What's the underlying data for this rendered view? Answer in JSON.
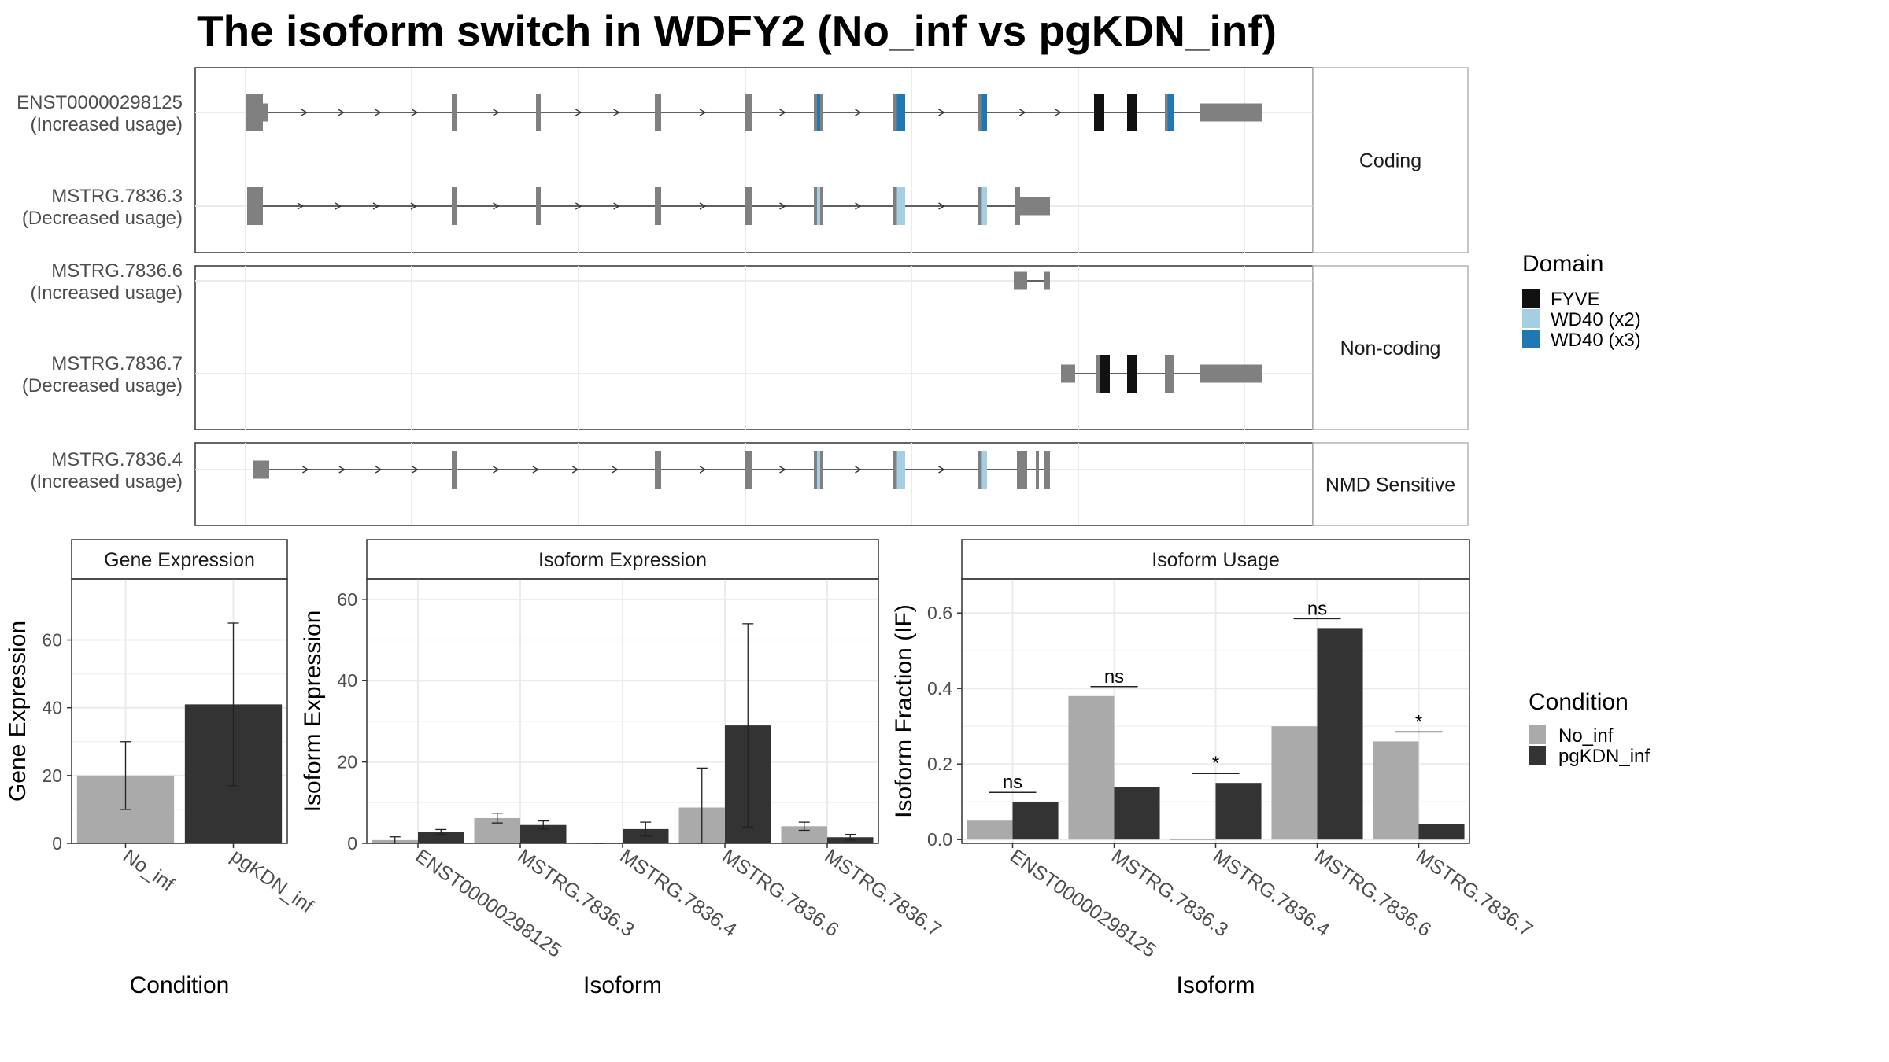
{
  "title": "The isoform switch in WDFY2 (No_inf vs pgKDN_inf)",
  "colors": {
    "exon": "#808080",
    "FYVE": "#111111",
    "WD40 (x2)": "#a6cee3",
    "WD40 (x3)": "#1f78b4",
    "No_inf": "#aaaaaa",
    "pgKDN_inf": "#333333"
  },
  "structure": {
    "facets": [
      {
        "label": "Coding",
        "transcripts": [
          {
            "name": "ENST00000298125",
            "usage": "(Increased usage)"
          },
          {
            "name": "MSTRG.7836.3",
            "usage": "(Decreased usage)"
          }
        ]
      },
      {
        "label": "Non-coding",
        "transcripts": [
          {
            "name": "MSTRG.7836.6",
            "usage": "(Increased usage)"
          },
          {
            "name": "MSTRG.7836.7",
            "usage": "(Decreased usage)"
          }
        ]
      },
      {
        "label": "NMD Sensitive",
        "transcripts": [
          {
            "name": "MSTRG.7836.4",
            "usage": "(Increased usage)"
          }
        ]
      }
    ],
    "domain_legend": {
      "title": "Domain",
      "items": [
        "FYVE",
        "WD40 (x2)",
        "WD40 (x3)"
      ]
    }
  },
  "condition_legend": {
    "title": "Condition",
    "items": [
      "No_inf",
      "pgKDN_inf"
    ]
  },
  "chart_data": [
    {
      "type": "bar",
      "panel": "Gene Expression",
      "categories": [
        "No_inf",
        "pgKDN_inf"
      ],
      "values": [
        20,
        41
      ],
      "error_low": [
        10,
        17
      ],
      "error_high": [
        30,
        65
      ],
      "xlabel": "Condition",
      "ylabel": "Gene Expression",
      "ylim": [
        0,
        78
      ],
      "yticks": [
        0,
        20,
        40,
        60
      ]
    },
    {
      "type": "bar",
      "panel": "Isoform Expression",
      "categories": [
        "ENST00000298125",
        "MSTRG.7836.3",
        "MSTRG.7836.4",
        "MSTRG.7836.6",
        "MSTRG.7836.7"
      ],
      "series": [
        {
          "name": "No_inf",
          "values": [
            0.8,
            6.2,
            0.0,
            8.8,
            4.2
          ],
          "error_low": [
            0.0,
            5.0,
            0.0,
            0.0,
            3.2
          ],
          "error_high": [
            1.6,
            7.4,
            0.0,
            18.5,
            5.2
          ]
        },
        {
          "name": "pgKDN_inf",
          "values": [
            2.8,
            4.5,
            3.5,
            29.0,
            1.5
          ],
          "error_low": [
            2.2,
            3.5,
            1.8,
            4.0,
            0.8
          ],
          "error_high": [
            3.4,
            5.5,
            5.2,
            54.0,
            2.2
          ]
        }
      ],
      "xlabel": "Isoform",
      "ylabel": "Isoform Expression",
      "ylim": [
        0,
        65
      ],
      "yticks": [
        0,
        20,
        40,
        60
      ]
    },
    {
      "type": "bar",
      "panel": "Isoform Usage",
      "categories": [
        "ENST00000298125",
        "MSTRG.7836.3",
        "MSTRG.7836.4",
        "MSTRG.7836.6",
        "MSTRG.7836.7"
      ],
      "series": [
        {
          "name": "No_inf",
          "values": [
            0.05,
            0.38,
            0.0,
            0.3,
            0.26
          ]
        },
        {
          "name": "pgKDN_inf",
          "values": [
            0.1,
            0.14,
            0.15,
            0.56,
            0.04
          ]
        }
      ],
      "significance": [
        "ns",
        "ns",
        "*",
        "ns",
        "*"
      ],
      "xlabel": "Isoform",
      "ylabel": "Isoform Fraction (IF)",
      "ylim": [
        -0.01,
        0.69
      ],
      "yticks": [
        0.0,
        0.2,
        0.4,
        0.6
      ]
    }
  ]
}
